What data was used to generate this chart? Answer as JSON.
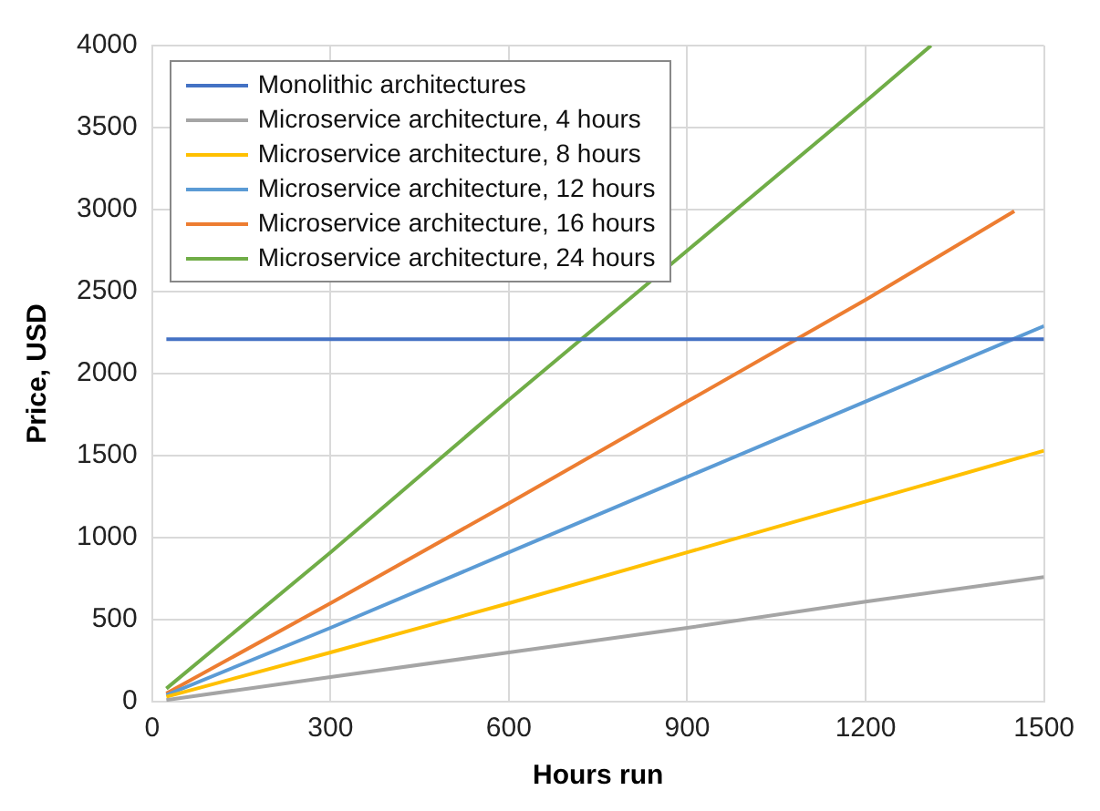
{
  "chart_data": {
    "type": "line",
    "xlabel": "Hours run",
    "ylabel": "Price, USD",
    "xlim": [
      0,
      1500
    ],
    "xticks": [
      0,
      300,
      600,
      900,
      1200,
      1500
    ],
    "ylim": [
      0,
      4000
    ],
    "yticks": [
      0,
      500,
      1000,
      1500,
      2000,
      2500,
      3000,
      3500,
      4000
    ],
    "grid": true,
    "legend": "top left",
    "marker": "none",
    "line_style": "solid",
    "series": [
      {
        "name": "Monolithic architectures",
        "color": "#4472c4",
        "x": [
          24,
          1500
        ],
        "values": [
          2210,
          2210
        ]
      },
      {
        "name": "Microservice architecture, 4 hours",
        "color": "#a5a5a5",
        "x": [
          24,
          300,
          600,
          900,
          1200,
          1500
        ],
        "values": [
          10,
          150,
          300,
          450,
          610,
          760
        ]
      },
      {
        "name": "Microservice architecture, 8 hours",
        "color": "#ffc000",
        "x": [
          24,
          300,
          600,
          900,
          1200,
          1500
        ],
        "values": [
          30,
          300,
          600,
          910,
          1220,
          1530
        ]
      },
      {
        "name": "Microservice architecture, 12 hours",
        "color": "#5b9bd5",
        "x": [
          24,
          300,
          600,
          900,
          1200,
          1500
        ],
        "values": [
          40,
          450,
          910,
          1370,
          1830,
          2290
        ]
      },
      {
        "name": "Microservice architecture, 16 hours",
        "color": "#ed7d31",
        "x": [
          24,
          300,
          600,
          900,
          1200,
          1450
        ],
        "values": [
          50,
          600,
          1210,
          1830,
          2450,
          2990
        ]
      },
      {
        "name": "Microservice architecture, 24 hours",
        "color": "#70ad47",
        "x": [
          24,
          300,
          600,
          900,
          1200,
          1310
        ],
        "values": [
          80,
          910,
          1840,
          2750,
          3660,
          4000
        ]
      }
    ]
  }
}
